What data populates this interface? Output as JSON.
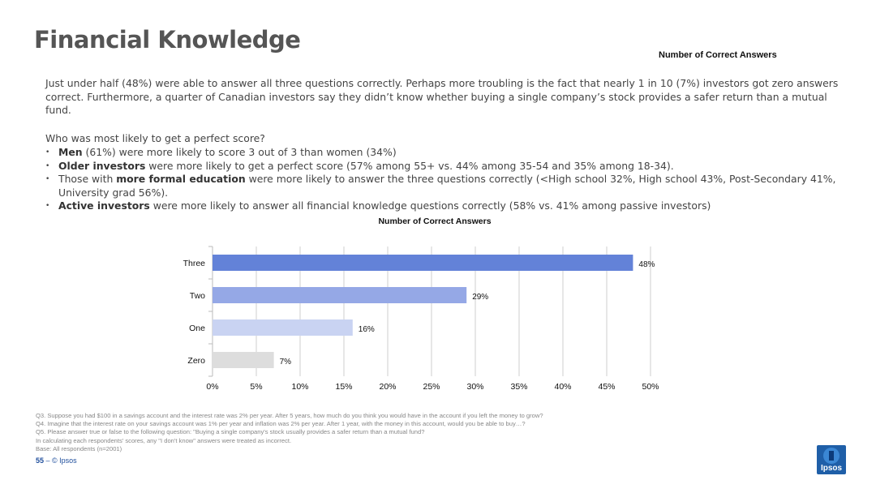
{
  "header": {
    "title": "Financial Knowledge",
    "top_label": "Number of  Correct Answers"
  },
  "intro": "Just under half (48%) were able to answer all three questions correctly. Perhaps more troubling is the fact that nearly 1 in 10 (7%) investors got zero answers correct. Furthermore, a quarter of Canadian investors say they didn’t know whether buying a single company’s stock provides a safer return than a mutual fund.",
  "question": "Who was most likely to get a perfect score?",
  "bullets": [
    {
      "bold": "Men",
      "rest": " (61%) were more likely to score 3 out of 3 than women (34%)"
    },
    {
      "bold": "Older investors",
      "rest": " were more likely to get a perfect score (57% among 55+ vs. 44% among 35-54 and 35% among 18-34)."
    },
    {
      "pre": "Those with ",
      "bold": "more formal education",
      "rest": " were more likely to answer the three questions correctly (<High school 32%, High school 43%, Post-Secondary 41%, University grad 56%)."
    },
    {
      "bold": "Active investors",
      "rest": " were more likely to answer all financial knowledge questions correctly (58% vs. 41% among passive investors)"
    }
  ],
  "chart_data": {
    "type": "bar",
    "orientation": "horizontal",
    "title": "Number of Correct Answers",
    "categories": [
      "Three",
      "Two",
      "One",
      "Zero"
    ],
    "values": [
      48,
      29,
      16,
      7
    ],
    "value_labels": [
      "48%",
      "29%",
      "16%",
      "7%"
    ],
    "bar_colors": [
      "#6382d8",
      "#95a8e6",
      "#c9d3f2",
      "#dddddd"
    ],
    "xlim": [
      0,
      50
    ],
    "x_ticks": [
      "0%",
      "5%",
      "10%",
      "15%",
      "20%",
      "25%",
      "30%",
      "35%",
      "40%",
      "45%",
      "50%"
    ],
    "grid": true
  },
  "footnotes": [
    "Q3. Suppose you had $100 in a savings account and the interest rate was 2% per year. After 5 years, how much do you think you would have in the account if you left the money to grow?",
    "Q4. Imagine that the interest rate on your savings account was 1% per year and inflation was 2% per year. After 1 year, with the money in this account, would you be able to buy…?",
    "Q5. Please answer true or false to the following question: \"Buying a single company's stock usually provides a safer return than a mutual fund?",
    "In calculating each respondents' scores, any \"I don't know\" answers were treated as incorrect.",
    "Base: All respondents (n=2001)"
  ],
  "footer": {
    "page_number": "55",
    "separator": " – ",
    "copyright": "© Ipsos",
    "logo_text": "Ipsos"
  }
}
